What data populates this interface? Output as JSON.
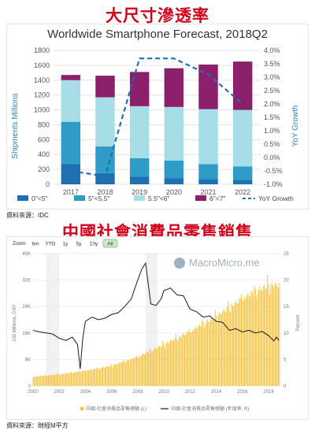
{
  "headings": {
    "top": "大尺寸滲透率",
    "bottom": "中國社會消費品零售銷售"
  },
  "sources": {
    "top": "資料來源：IDC",
    "bottom": "資料來源：財經M平方"
  },
  "colors": {
    "heading": "#d0021b",
    "lt5": "#1f6fb2",
    "s5to55": "#2e9cc6",
    "s55to6": "#a6dde6",
    "s6to7": "#8b1f6b",
    "yoy": "#1f6fb2",
    "retail_bar": "#f3c443",
    "retail_line": "#1a1a1a"
  },
  "chart_data": [
    {
      "type": "bar",
      "stacked": true,
      "title": "Worldwide Smartphone Forecast, 2018Q2",
      "ylabel": "Shipments Millions",
      "y2label": "YoY Growth",
      "categories": [
        "2017",
        "2018",
        "2019",
        "2020",
        "2021",
        "2022"
      ],
      "ylim": [
        0,
        1800
      ],
      "yticks": [
        0,
        200,
        400,
        600,
        800,
        1000,
        1200,
        1400,
        1600,
        1800
      ],
      "y2lim": [
        -1.0,
        4.0
      ],
      "y2ticks": [
        "-1.0%",
        "-0.5%",
        "0.0%",
        "0.5%",
        "1.0%",
        "1.5%",
        "2.0%",
        "2.5%",
        "3.0%",
        "3.5%",
        "4.0%"
      ],
      "series": [
        {
          "name": "0\"<5\"",
          "values": [
            270,
            150,
            100,
            80,
            70,
            60
          ]
        },
        {
          "name": "5\"<5.5\"",
          "values": [
            570,
            360,
            250,
            240,
            200,
            180
          ]
        },
        {
          "name": "5.5\"<6\"",
          "values": [
            560,
            660,
            700,
            720,
            740,
            760
          ]
        },
        {
          "name": "6\"<7\"",
          "values": [
            70,
            290,
            460,
            520,
            600,
            650
          ]
        }
      ],
      "line": {
        "name": "YoY Growth",
        "values": [
          -0.5,
          -0.7,
          3.7,
          3.7,
          3.1,
          2.0
        ]
      },
      "legend": "bottom",
      "grid": true
    },
    {
      "type": "bar",
      "title": "",
      "watermark": "MacroMicro.me",
      "ylabel": "100 Millions, CNY",
      "y2label": "Percent",
      "ylim": [
        0,
        40000
      ],
      "yticks": [
        "0",
        "8K",
        "16K",
        "24K",
        "32K",
        "40K"
      ],
      "y2lim": [
        0,
        25
      ],
      "y2ticks": [
        "0",
        "5",
        "10",
        "15",
        "20",
        "25"
      ],
      "xticks": [
        "2000",
        "2002",
        "2004",
        "2006",
        "2008",
        "2010",
        "2012",
        "2014",
        "2016",
        "2018"
      ],
      "xrange": [
        2000,
        2018.9
      ],
      "zoom": {
        "label": "Zoom",
        "options": [
          "6m",
          "YTD",
          "1y",
          "5y",
          "10y",
          "All"
        ],
        "active": "All"
      },
      "bar_series": {
        "name": "中國-社會消費品零售總額 (L)",
        "points": [
          [
            2000,
            2800
          ],
          [
            2002,
            3500
          ],
          [
            2004,
            4600
          ],
          [
            2006,
            6100
          ],
          [
            2008,
            8800
          ],
          [
            2010,
            12500
          ],
          [
            2012,
            16500
          ],
          [
            2014,
            21000
          ],
          [
            2016,
            26500
          ],
          [
            2018,
            30500
          ]
        ]
      },
      "line_series": {
        "name": "中國-社會消費品零售總額 (年增率, R)",
        "points": [
          [
            2000,
            10.5
          ],
          [
            2000.5,
            10.2
          ],
          [
            2001,
            10.0
          ],
          [
            2001.5,
            9.8
          ],
          [
            2002,
            9.0
          ],
          [
            2002.5,
            8.6
          ],
          [
            2003,
            9.2
          ],
          [
            2003.4,
            7.8
          ],
          [
            2003.6,
            3.2
          ],
          [
            2003.8,
            9.0
          ],
          [
            2004,
            12.2
          ],
          [
            2004.5,
            13.0
          ],
          [
            2005,
            12.5
          ],
          [
            2005.5,
            12.8
          ],
          [
            2006,
            13.5
          ],
          [
            2006.5,
            13.8
          ],
          [
            2007,
            15.0
          ],
          [
            2007.5,
            16.4
          ],
          [
            2008,
            20.0
          ],
          [
            2008.3,
            22.0
          ],
          [
            2008.6,
            23.2
          ],
          [
            2009,
            15.5
          ],
          [
            2009.4,
            15.2
          ],
          [
            2009.8,
            16.5
          ],
          [
            2010,
            18.0
          ],
          [
            2010.5,
            18.5
          ],
          [
            2011,
            17.2
          ],
          [
            2011.5,
            17.0
          ],
          [
            2012,
            14.5
          ],
          [
            2012.5,
            14.0
          ],
          [
            2013,
            13.0
          ],
          [
            2013.5,
            13.2
          ],
          [
            2014,
            12.2
          ],
          [
            2014.5,
            12.0
          ],
          [
            2015,
            10.5
          ],
          [
            2015.5,
            10.8
          ],
          [
            2016,
            10.2
          ],
          [
            2016.5,
            10.5
          ],
          [
            2017,
            10.0
          ],
          [
            2017.5,
            10.3
          ],
          [
            2018,
            9.5
          ],
          [
            2018.4,
            8.5
          ],
          [
            2018.6,
            9.2
          ],
          [
            2018.8,
            8.6
          ]
        ]
      },
      "legend": "bottom",
      "grid": true
    }
  ]
}
